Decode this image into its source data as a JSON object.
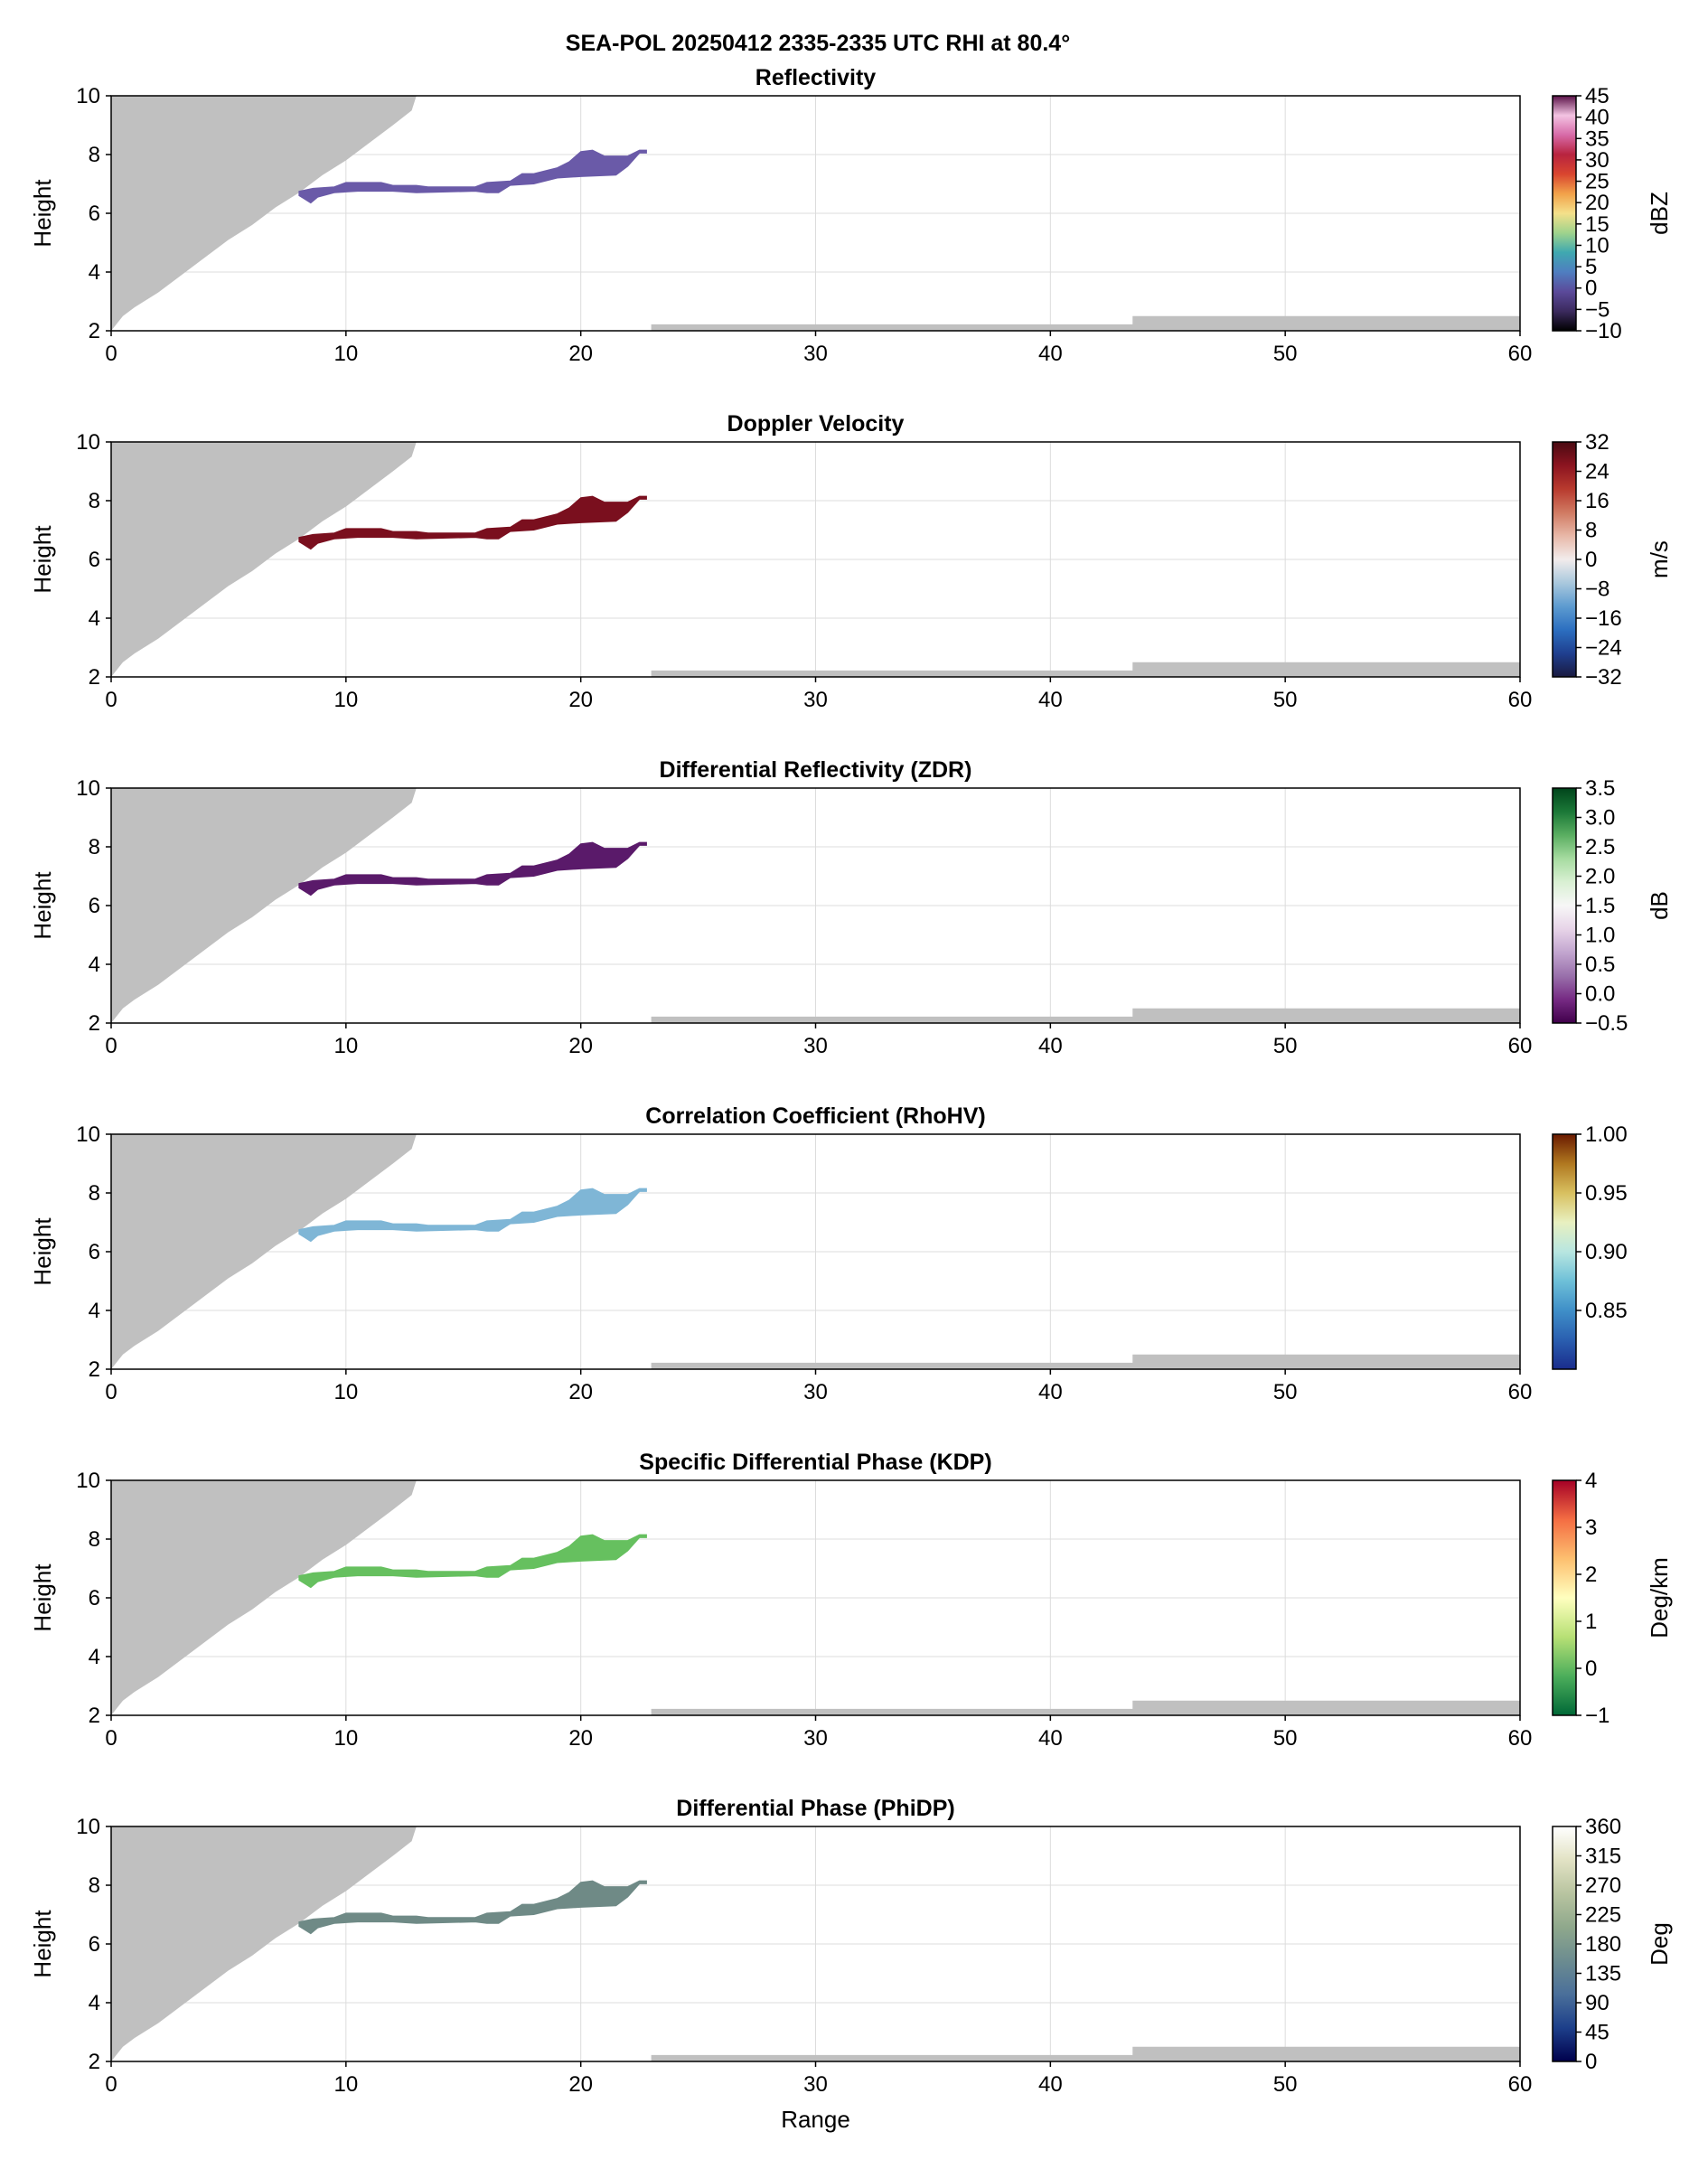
{
  "figure": {
    "suptitle": "SEA-POL 20250412 2335-2335 UTC RHI at 80.4°"
  },
  "colors": {
    "blocked": "#c0c0c0",
    "grid": "#dcdcdc",
    "axes": "#000000"
  },
  "chart_data": [
    {
      "type": "heatmap",
      "title": "Reflectivity",
      "xlabel": "",
      "ylabel": "Height",
      "xlim": [
        0,
        60
      ],
      "ylim": [
        2,
        10
      ],
      "xticks": [
        0,
        10,
        20,
        30,
        40,
        50,
        60
      ],
      "yticks": [
        2,
        4,
        6,
        8,
        10
      ],
      "grid": true,
      "field_color": "#6a5aa8",
      "colorbar": {
        "label": "dBZ",
        "range": [
          -10,
          45
        ],
        "ticks": [
          "45",
          "40",
          "35",
          "30",
          "25",
          "20",
          "15",
          "10",
          "5",
          "0",
          "−5",
          "−10"
        ],
        "tick_values": [
          45,
          40,
          35,
          30,
          25,
          20,
          15,
          10,
          5,
          0,
          -5,
          -10
        ],
        "colors": [
          "#000000",
          "#3b2a5e",
          "#5b4a9a",
          "#4f7ec0",
          "#3fa8b0",
          "#9fd38c",
          "#f4e08a",
          "#f2a24a",
          "#d9452f",
          "#b8233f",
          "#d76aa8",
          "#f3c3e2",
          "#5a1248"
        ]
      }
    },
    {
      "type": "heatmap",
      "title": "Doppler Velocity",
      "xlabel": "",
      "ylabel": "Height",
      "xlim": [
        0,
        60
      ],
      "ylim": [
        2,
        10
      ],
      "xticks": [
        0,
        10,
        20,
        30,
        40,
        50,
        60
      ],
      "yticks": [
        2,
        4,
        6,
        8,
        10
      ],
      "grid": true,
      "field_color": "#7a0f1e",
      "colorbar": {
        "label": "m/s",
        "range": [
          -32,
          32
        ],
        "ticks": [
          "32",
          "24",
          "16",
          "8",
          "0",
          "−8",
          "−16",
          "−24",
          "−32"
        ],
        "tick_values": [
          32,
          24,
          16,
          8,
          0,
          -8,
          -16,
          -24,
          -32
        ],
        "colors": [
          "#1a1a40",
          "#1f3f8f",
          "#2c6fc0",
          "#5d9bd0",
          "#a9c8dd",
          "#f2ecec",
          "#e8b8a8",
          "#d07a62",
          "#b83a2e",
          "#8c1420",
          "#4a0a12"
        ]
      }
    },
    {
      "type": "heatmap",
      "title": "Differential Reflectivity (ZDR)",
      "xlabel": "",
      "ylabel": "Height",
      "xlim": [
        0,
        60
      ],
      "ylim": [
        2,
        10
      ],
      "xticks": [
        0,
        10,
        20,
        30,
        40,
        50,
        60
      ],
      "yticks": [
        2,
        4,
        6,
        8,
        10
      ],
      "grid": true,
      "field_color": "#5a1a6a",
      "colorbar": {
        "label": "dB",
        "range": [
          -0.5,
          3.5
        ],
        "ticks": [
          "3.5",
          "3.0",
          "2.5",
          "2.0",
          "1.5",
          "1.0",
          "0.5",
          "0.0",
          "−0.5"
        ],
        "tick_values": [
          3.5,
          3.0,
          2.5,
          2.0,
          1.5,
          1.0,
          0.5,
          0.0,
          -0.5
        ],
        "colors": [
          "#40004b",
          "#762a83",
          "#9970ab",
          "#c2a5cf",
          "#e7d4e8",
          "#f7f7f7",
          "#d9f0d3",
          "#a6dba0",
          "#5aae61",
          "#1b7837",
          "#00441b"
        ]
      }
    },
    {
      "type": "heatmap",
      "title": "Correlation Coefficient (RhoHV)",
      "xlabel": "",
      "ylabel": "Height",
      "xlim": [
        0,
        60
      ],
      "ylim": [
        2,
        10
      ],
      "xticks": [
        0,
        10,
        20,
        30,
        40,
        50,
        60
      ],
      "yticks": [
        2,
        4,
        6,
        8,
        10
      ],
      "grid": true,
      "field_color": "#7fb6d6",
      "colorbar": {
        "label": "",
        "range": [
          0.8,
          1.0
        ],
        "ticks": [
          "1.00",
          "0.95",
          "0.90",
          "0.85"
        ],
        "tick_values": [
          1.0,
          0.95,
          0.9,
          0.85
        ],
        "colors": [
          "#1a2c8c",
          "#2a5fb0",
          "#3f8fc8",
          "#6ec0d8",
          "#b8e6e0",
          "#e8f0c0",
          "#d8c060",
          "#b07820",
          "#6a1a00"
        ]
      }
    },
    {
      "type": "heatmap",
      "title": "Specific Differential Phase (KDP)",
      "xlabel": "",
      "ylabel": "Height",
      "xlim": [
        0,
        60
      ],
      "ylim": [
        2,
        10
      ],
      "xticks": [
        0,
        10,
        20,
        30,
        40,
        50,
        60
      ],
      "yticks": [
        2,
        4,
        6,
        8,
        10
      ],
      "grid": true,
      "field_color": "#66c05f",
      "colorbar": {
        "label": "Deg/km",
        "range": [
          -1,
          4
        ],
        "ticks": [
          "4",
          "3",
          "2",
          "1",
          "0",
          "−1"
        ],
        "tick_values": [
          4,
          3,
          2,
          1,
          0,
          -1
        ],
        "colors": [
          "#006837",
          "#4cae5b",
          "#b7e075",
          "#ffffbf",
          "#fdbf6f",
          "#f46d43",
          "#a50026"
        ]
      }
    },
    {
      "type": "heatmap",
      "title": "Differential Phase (PhiDP)",
      "xlabel": "Range",
      "ylabel": "Height",
      "xlim": [
        0,
        60
      ],
      "ylim": [
        2,
        10
      ],
      "xticks": [
        0,
        10,
        20,
        30,
        40,
        50,
        60
      ],
      "yticks": [
        2,
        4,
        6,
        8,
        10
      ],
      "grid": true,
      "field_color": "#6f8a86",
      "colorbar": {
        "label": "Deg",
        "range": [
          0,
          360
        ],
        "ticks": [
          "360",
          "315",
          "270",
          "225",
          "180",
          "135",
          "90",
          "45",
          "0"
        ],
        "tick_values": [
          360,
          315,
          270,
          225,
          180,
          135,
          90,
          45,
          0
        ],
        "colors": [
          "#00004c",
          "#1d3f8a",
          "#4a6f9a",
          "#6c8c90",
          "#8fa88c",
          "#b8c4a0",
          "#e2e2c4",
          "#ffffff"
        ]
      }
    }
  ],
  "echo_outline": {
    "top": [
      [
        8,
        6.75
      ],
      [
        8.6,
        6.85
      ],
      [
        9.5,
        6.9
      ],
      [
        10,
        7.05
      ],
      [
        11.5,
        7.05
      ],
      [
        12,
        6.95
      ],
      [
        13,
        6.95
      ],
      [
        13.5,
        6.9
      ],
      [
        15.5,
        6.9
      ],
      [
        16,
        7.05
      ],
      [
        17,
        7.1
      ],
      [
        17.5,
        7.35
      ],
      [
        18,
        7.35
      ],
      [
        19,
        7.55
      ],
      [
        19.5,
        7.75
      ],
      [
        20,
        8.1
      ],
      [
        20.5,
        8.15
      ],
      [
        21,
        7.95
      ],
      [
        22,
        7.95
      ],
      [
        22.5,
        8.15
      ],
      [
        22.8,
        8.15
      ]
    ],
    "bottom": [
      [
        22.8,
        8.05
      ],
      [
        22.5,
        8.05
      ],
      [
        22,
        7.6
      ],
      [
        21.5,
        7.3
      ],
      [
        20,
        7.25
      ],
      [
        19,
        7.2
      ],
      [
        18.5,
        7.1
      ],
      [
        18,
        7.0
      ],
      [
        17,
        6.95
      ],
      [
        16.5,
        6.7
      ],
      [
        16,
        6.7
      ],
      [
        15.5,
        6.75
      ],
      [
        13,
        6.7
      ],
      [
        12,
        6.75
      ],
      [
        10.5,
        6.75
      ],
      [
        9.5,
        6.7
      ],
      [
        8.8,
        6.55
      ],
      [
        8.5,
        6.35
      ],
      [
        8.2,
        6.5
      ],
      [
        8,
        6.6
      ]
    ]
  },
  "blockage": {
    "left_edge": [
      [
        0,
        2
      ],
      [
        0.5,
        2.5
      ],
      [
        1,
        2.8
      ],
      [
        2,
        3.3
      ],
      [
        3,
        3.9
      ],
      [
        4,
        4.5
      ],
      [
        5,
        5.1
      ],
      [
        6,
        5.6
      ],
      [
        7,
        6.2
      ],
      [
        8,
        6.7
      ],
      [
        9,
        7.3
      ],
      [
        10,
        7.8
      ],
      [
        11,
        8.4
      ],
      [
        12,
        9.0
      ],
      [
        12.8,
        9.5
      ],
      [
        13,
        10
      ]
    ],
    "bottom_right": [
      [
        23,
        2
      ],
      [
        23,
        2.22
      ],
      [
        43.5,
        2.22
      ],
      [
        43.5,
        2.5
      ],
      [
        60,
        2.5
      ],
      [
        60,
        2
      ]
    ]
  }
}
